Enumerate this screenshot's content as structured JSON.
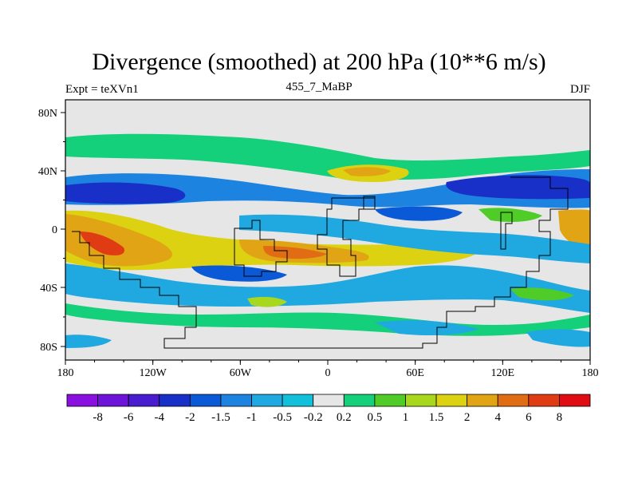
{
  "title": "Divergence (smoothed) at 200 hPa (10**6 m/s)",
  "left_label": "Expt = teXVn1",
  "center_label": "455_7_MaBP",
  "right_label": "DJF",
  "axes": {
    "lat_ticks": [
      "80N",
      "40N",
      "0",
      "40S",
      "80S"
    ],
    "lon_ticks": [
      "180",
      "120W",
      "60W",
      "0",
      "60E",
      "120E",
      "180"
    ]
  },
  "legend": {
    "labels": [
      "-8",
      "-6",
      "-4",
      "-2",
      "-1.5",
      "-1",
      "-0.5",
      "-0.2",
      "0.2",
      "0.5",
      "1",
      "1.5",
      "2",
      "4",
      "6",
      "8"
    ],
    "colors": [
      "#8a10e0",
      "#6e14d8",
      "#4a1cd0",
      "#1830c8",
      "#0a5ad8",
      "#1c84e0",
      "#20a8e0",
      "#12c0dc",
      "#e6e6e6",
      "#14d07a",
      "#50cc28",
      "#a8d81e",
      "#dcd212",
      "#e0a414",
      "#e06c14",
      "#e03c14",
      "#e00c14"
    ]
  },
  "colors": {
    "background": "#e6e6e6",
    "coast": "#000000"
  }
}
